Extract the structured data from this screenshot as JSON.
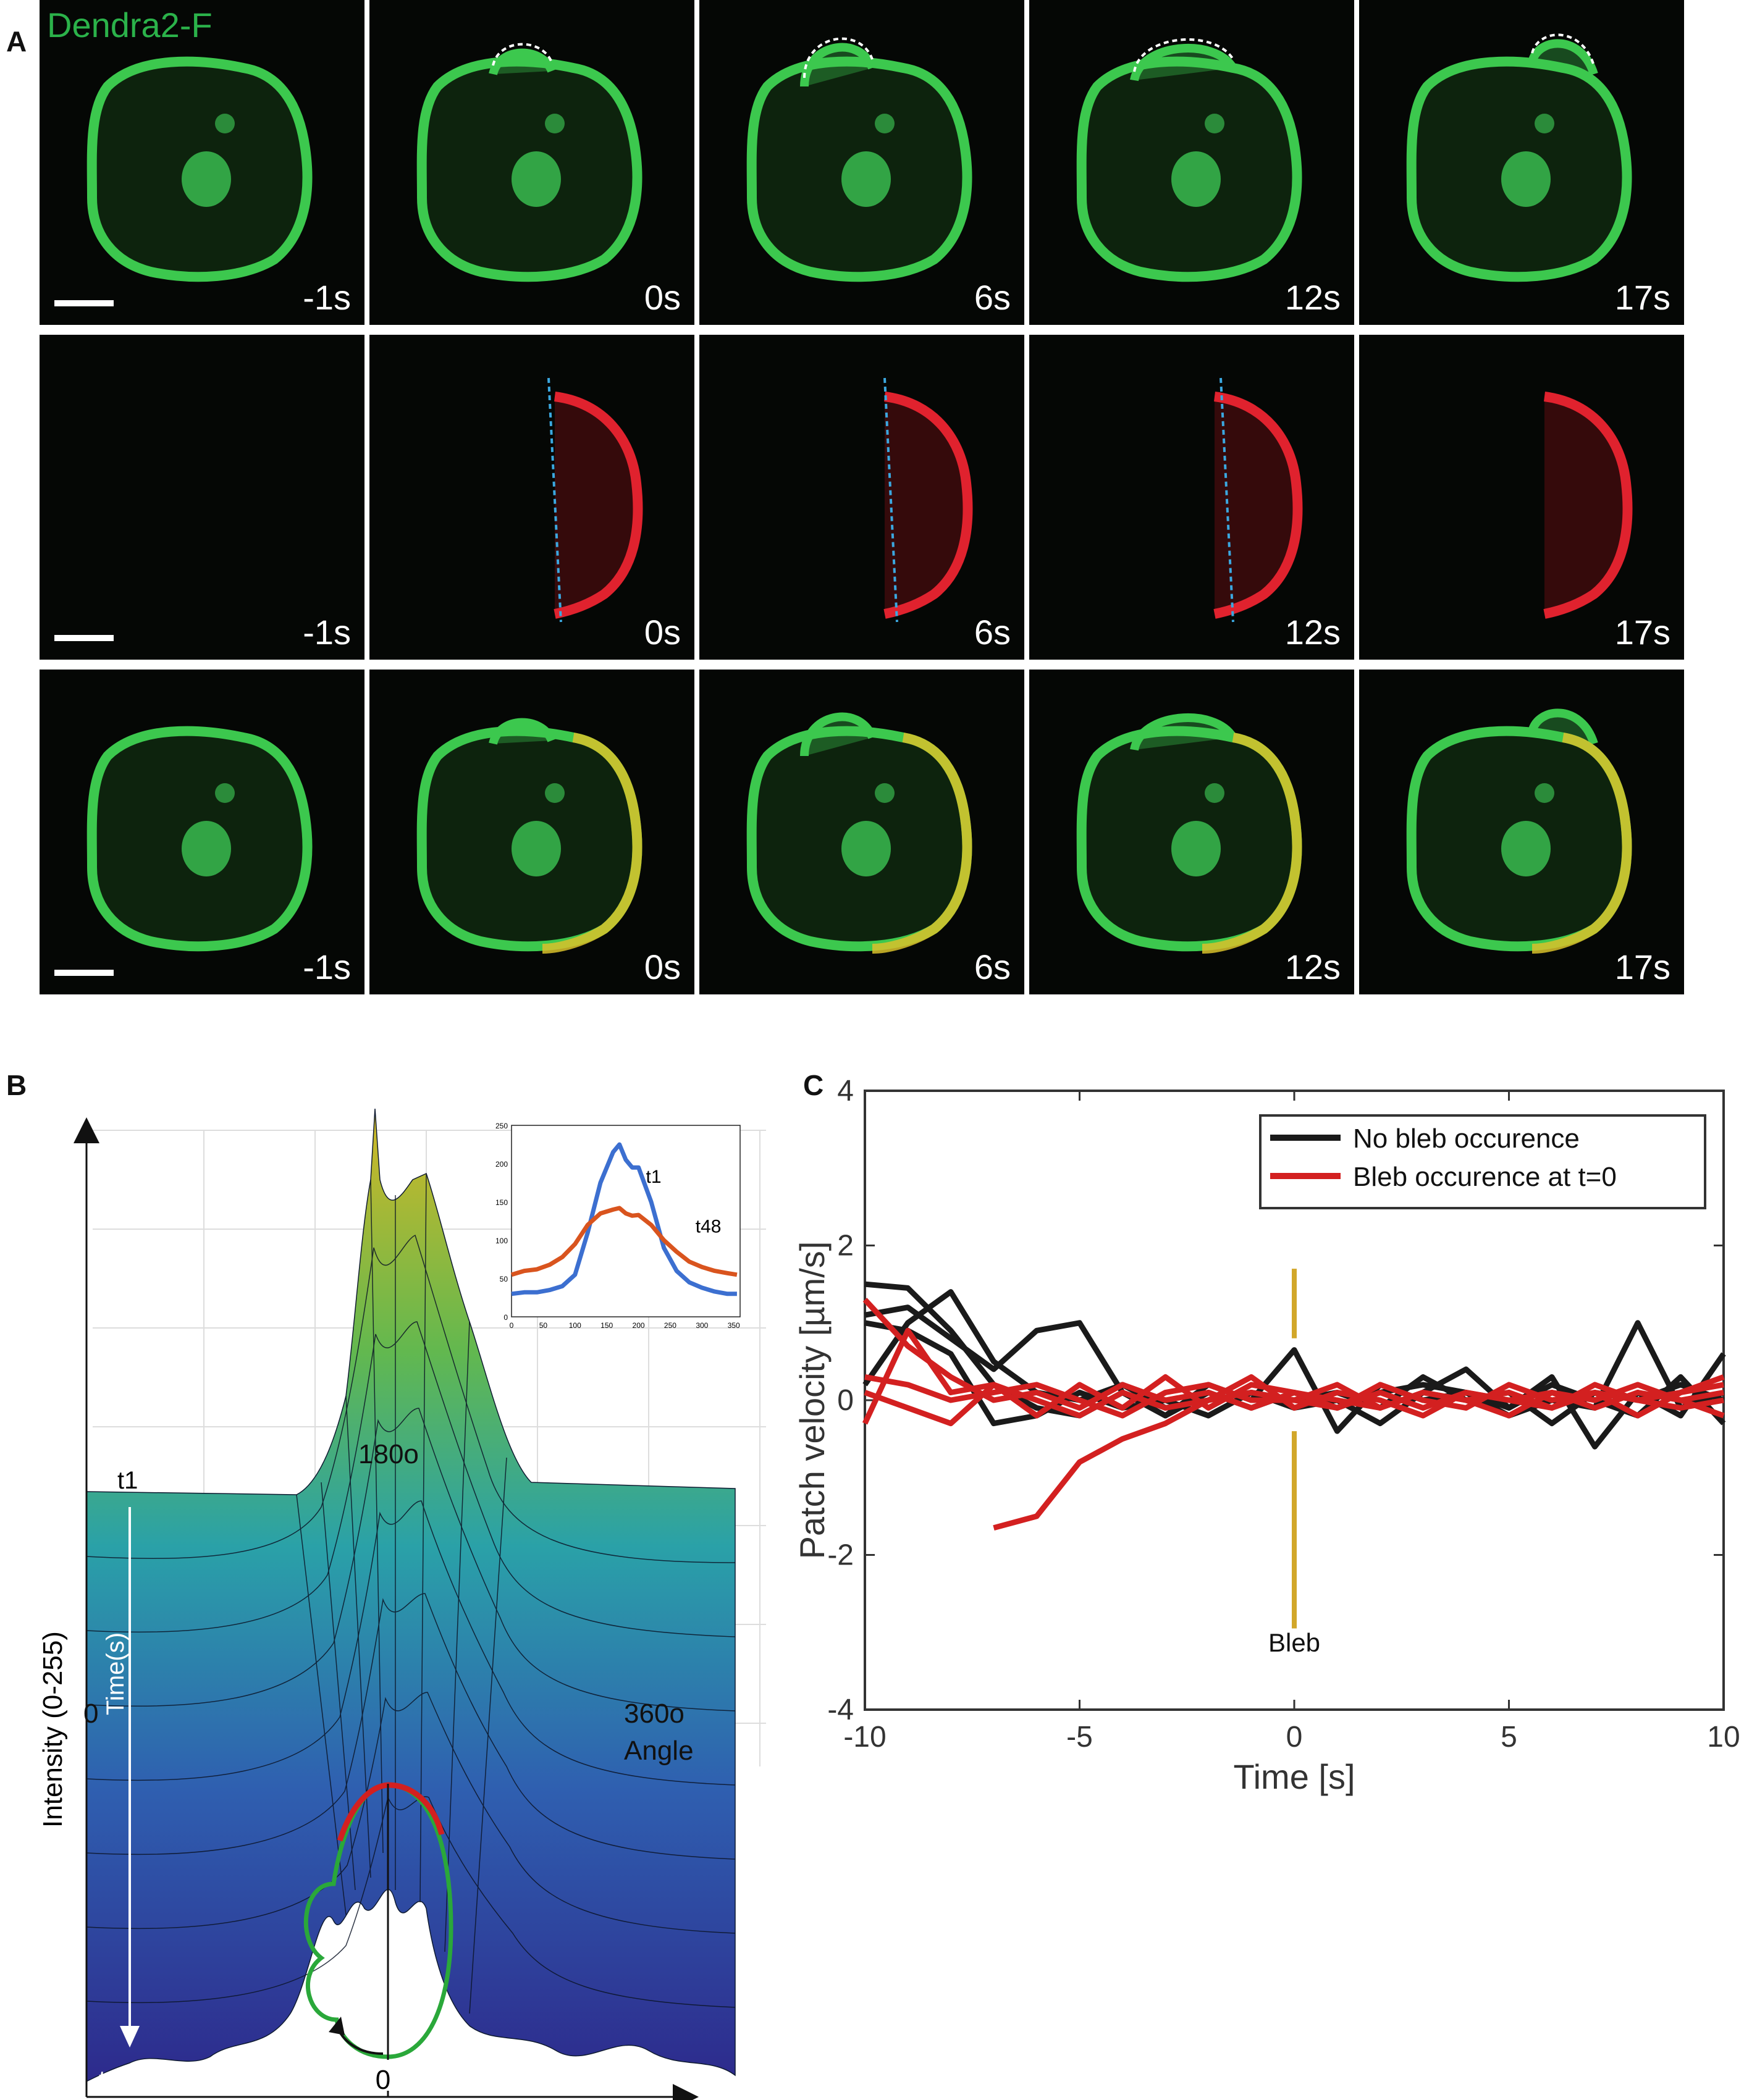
{
  "figure": {
    "panel_a": {
      "letter": "A",
      "channel_label": "Dendra2-F",
      "time_labels": [
        "-1s",
        "0s",
        "6s",
        "12s",
        "17s"
      ],
      "rows": [
        "green",
        "red",
        "merge"
      ]
    },
    "panel_b": {
      "letter": "B",
      "ylabel": "Intensity (0-255)",
      "time_axis_label": "Time(s)",
      "t_start": "t1",
      "t_end": "t48",
      "x_start": "0",
      "x_mid": "180o",
      "x_end": "360o",
      "x_title": "Angle",
      "cell_angle_zero": "0"
    },
    "panel_c": {
      "letter": "C",
      "xlabel": "Time [s]",
      "ylabel": "Patch velocity [µm/s]",
      "legend": [
        "No bleb occurence",
        "Bleb occurence at t=0"
      ],
      "marker_label": "Bleb"
    }
  },
  "chart_data": [
    {
      "type": "line",
      "id": "inset-profiles",
      "x": [
        0,
        20,
        40,
        60,
        80,
        100,
        120,
        140,
        160,
        170,
        180,
        190,
        200,
        220,
        240,
        260,
        280,
        300,
        320,
        340,
        355
      ],
      "series": [
        {
          "name": "t1",
          "color": "#3c6fd0",
          "values": [
            30,
            32,
            32,
            35,
            40,
            55,
            110,
            175,
            215,
            225,
            205,
            195,
            195,
            150,
            90,
            60,
            45,
            38,
            33,
            30,
            30
          ]
        },
        {
          "name": "t48",
          "color": "#d9541e",
          "values": [
            55,
            60,
            62,
            68,
            78,
            95,
            120,
            135,
            140,
            142,
            135,
            132,
            133,
            120,
            100,
            85,
            72,
            65,
            60,
            57,
            55
          ]
        }
      ],
      "xlim": [
        0,
        360
      ],
      "ylim": [
        0,
        250
      ],
      "xticks": [
        0,
        50,
        100,
        150,
        200,
        250,
        300,
        350
      ],
      "yticks": [
        0,
        50,
        100,
        150,
        200,
        250
      ]
    },
    {
      "type": "line",
      "id": "patch-velocity",
      "title": "",
      "xlabel": "Time [s]",
      "ylabel": "Patch velocity [µm/s]",
      "xlim": [
        -10,
        10
      ],
      "ylim": [
        -4,
        4
      ],
      "xticks": [
        -10,
        -5,
        0,
        5,
        10
      ],
      "yticks": [
        -4,
        -2,
        0,
        2,
        4
      ],
      "legend_position": "top-right",
      "marker": {
        "x": 0,
        "label": "Bleb",
        "color": "#d2a72a"
      },
      "series": [
        {
          "name": "No bleb occurence",
          "color": "#1a1a1a",
          "x": [
            -10,
            -9,
            -8,
            -7,
            -6,
            -5,
            -4,
            -3,
            -2,
            -1,
            0,
            1,
            2,
            3,
            4,
            5,
            6,
            7,
            8,
            9,
            10
          ],
          "values": [
            1.5,
            1.45,
            0.9,
            0.2,
            -0.1,
            -0.2,
            0.1,
            -0.2,
            0.1,
            -0.1,
            0.1,
            -0.1,
            0.1,
            0.2,
            0.1,
            -0.1,
            0.3,
            -0.6,
            0.1,
            -0.2,
            0.6
          ]
        },
        {
          "name": "",
          "color": "#1a1a1a",
          "x": [
            -10,
            -9,
            -8,
            -7,
            -6,
            -5,
            -4,
            -3,
            -2,
            -1,
            0,
            1,
            2,
            3,
            4,
            5,
            6,
            7,
            8,
            9,
            10
          ],
          "values": [
            1.1,
            1.2,
            0.8,
            0.4,
            0.9,
            1.0,
            0.1,
            -0.2,
            0.2,
            0.0,
            0.65,
            -0.4,
            0.2,
            0.0,
            0.1,
            -0.2,
            0.0,
            -0.1,
            1.0,
            -0.1,
            0.1
          ]
        },
        {
          "name": "",
          "color": "#1a1a1a",
          "x": [
            -10,
            -9,
            -8,
            -7,
            -6,
            -5,
            -4,
            -3,
            -2,
            -1,
            0,
            1,
            2,
            3,
            4,
            5,
            6,
            7,
            8,
            9,
            10
          ],
          "values": [
            0.2,
            1.0,
            1.4,
            0.5,
            0.1,
            0.0,
            0.2,
            -0.1,
            0.0,
            0.1,
            -0.1,
            0.0,
            -0.3,
            0.1,
            0.4,
            -0.1,
            0.2,
            0.0,
            -0.2,
            0.3,
            -0.3
          ]
        },
        {
          "name": "",
          "color": "#1a1a1a",
          "x": [
            -10,
            -9,
            -8,
            -7,
            -6,
            -5,
            -4,
            -3,
            -2,
            -1,
            0,
            1,
            2,
            3,
            4,
            5,
            6,
            7,
            8,
            9,
            10
          ],
          "values": [
            1.0,
            0.9,
            0.6,
            -0.3,
            -0.2,
            0.1,
            -0.1,
            0.0,
            -0.2,
            0.1,
            0.0,
            0.1,
            -0.1,
            0.3,
            0.0,
            0.1,
            -0.3,
            0.1,
            0.0,
            0.2,
            0.0
          ]
        },
        {
          "name": "Bleb occurence at t=0",
          "color": "#d32020",
          "x": [
            -10,
            -9,
            -8,
            -7,
            -6,
            -5,
            -4,
            -3,
            -2,
            -1,
            0,
            1,
            2,
            3,
            4,
            5,
            6,
            7,
            8,
            9,
            10
          ],
          "values": [
            1.3,
            0.7,
            0.3,
            0.0,
            0.1,
            -0.1,
            0.2,
            0.0,
            0.1,
            -0.1,
            0.1,
            0.0,
            -0.1,
            0.1,
            0.0,
            0.1,
            -0.1,
            0.1,
            0.0,
            0.1,
            0.2
          ]
        },
        {
          "name": "",
          "color": "#d32020",
          "x": [
            -10,
            -9,
            -8,
            -7,
            -6,
            -5,
            -4,
            -3,
            -2,
            -1,
            0,
            1,
            2,
            3,
            4,
            5,
            6,
            7,
            8,
            9,
            10
          ],
          "values": [
            -0.3,
            0.9,
            0.1,
            0.2,
            -0.2,
            0.2,
            -0.1,
            0.3,
            -0.1,
            0.2,
            0.1,
            -0.1,
            0.2,
            0.0,
            -0.1,
            0.2,
            0.0,
            0.1,
            -0.2,
            0.1,
            0.3
          ]
        },
        {
          "name": "",
          "color": "#d32020",
          "x": [
            -10,
            -9,
            -8,
            -7,
            -6,
            -5,
            -4,
            -3,
            -2,
            -1,
            0,
            1,
            2,
            3,
            4,
            5,
            6,
            7,
            8,
            9,
            10
          ],
          "values": [
            0.1,
            -0.1,
            -0.3,
            0.2,
            0.0,
            -0.2,
            0.1,
            -0.1,
            0.0,
            0.3,
            -0.1,
            0.1,
            0.0,
            -0.2,
            0.1,
            0.0,
            -0.1,
            0.2,
            0.0,
            -0.1,
            0.0
          ]
        },
        {
          "name": "",
          "color": "#d32020",
          "x": [
            -10,
            -9,
            -8,
            -7,
            -6,
            -5,
            -4,
            -3,
            -2,
            -1,
            0,
            1,
            2,
            3,
            4,
            5,
            6,
            7,
            8,
            9,
            10
          ],
          "values": [
            0.3,
            0.2,
            0.0,
            0.1,
            0.2,
            0.0,
            -0.2,
            0.1,
            0.2,
            0.0,
            0.0,
            0.2,
            -0.1,
            0.1,
            0.0,
            -0.2,
            0.1,
            0.0,
            0.2,
            0.0,
            -0.2
          ]
        },
        {
          "name": "",
          "color": "#d32020",
          "x": [
            -7,
            -6,
            -5,
            -4,
            -3,
            -2,
            -1,
            0,
            1,
            2,
            3,
            4,
            5,
            6,
            7,
            8,
            9,
            10
          ],
          "values": [
            -1.65,
            -1.5,
            -0.8,
            -0.5,
            -0.3,
            0.0,
            0.1,
            0.0,
            -0.1,
            0.1,
            -0.1,
            0.1,
            0.0,
            0.1,
            -0.1,
            0.1,
            0.0,
            0.1
          ]
        }
      ]
    }
  ]
}
